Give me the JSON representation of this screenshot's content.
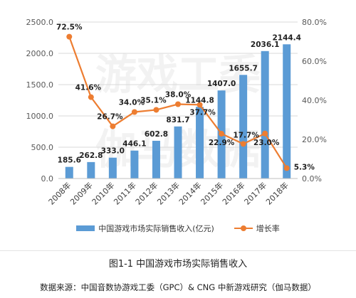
{
  "chart_data": {
    "type": "bar",
    "categories": [
      "2008年",
      "2009年",
      "2010年",
      "2011年",
      "2012年",
      "2013年",
      "2014年",
      "2015年",
      "2016年",
      "2017年",
      "2018年"
    ],
    "series": [
      {
        "name": "中国游戏市场实际销售收入(亿元)",
        "type": "bar",
        "axis": "left",
        "color": "#5b9bd5",
        "values": [
          185.6,
          262.8,
          333.0,
          446.1,
          602.8,
          831.7,
          1144.8,
          1407.0,
          1655.7,
          2036.1,
          2144.4
        ],
        "labels": [
          "185.6",
          "262.8",
          "333.0",
          "446.1",
          "602.8",
          "831.7",
          "1144.8",
          "1407.0",
          "1655.7",
          "2036.1",
          "2144.4"
        ]
      },
      {
        "name": "增长率",
        "type": "line",
        "axis": "right",
        "color": "#ed7d31",
        "values": [
          72.5,
          41.6,
          26.7,
          34.0,
          35.1,
          38.0,
          37.7,
          22.9,
          17.7,
          23.0,
          5.3
        ],
        "labels": [
          "72.5%",
          "41.6%",
          "26.7%",
          "34.0%",
          "35.1%",
          "38.0%",
          "37.7%",
          "22.9%",
          "17.7%",
          "23.0%",
          "5.3%"
        ]
      }
    ],
    "y_left": {
      "min": 0,
      "max": 2500,
      "ticks": [
        "0.0",
        "500.0",
        "1000.0",
        "1500.0",
        "2000.0",
        "2500.0"
      ]
    },
    "y_right": {
      "min": 0,
      "max": 80,
      "ticks": [
        "0.0%",
        "20.0%",
        "40.0%",
        "60.0%",
        "80.0%"
      ]
    },
    "grid": true,
    "legend_position": "bottom",
    "watermark": "游戏工委 伽马数据"
  },
  "caption": "图1-1  中国游戏市场实际销售收入",
  "source": "数据来源：中国音数协游戏工委（GPC）& CNG 中新游戏研究（伽马数据）"
}
